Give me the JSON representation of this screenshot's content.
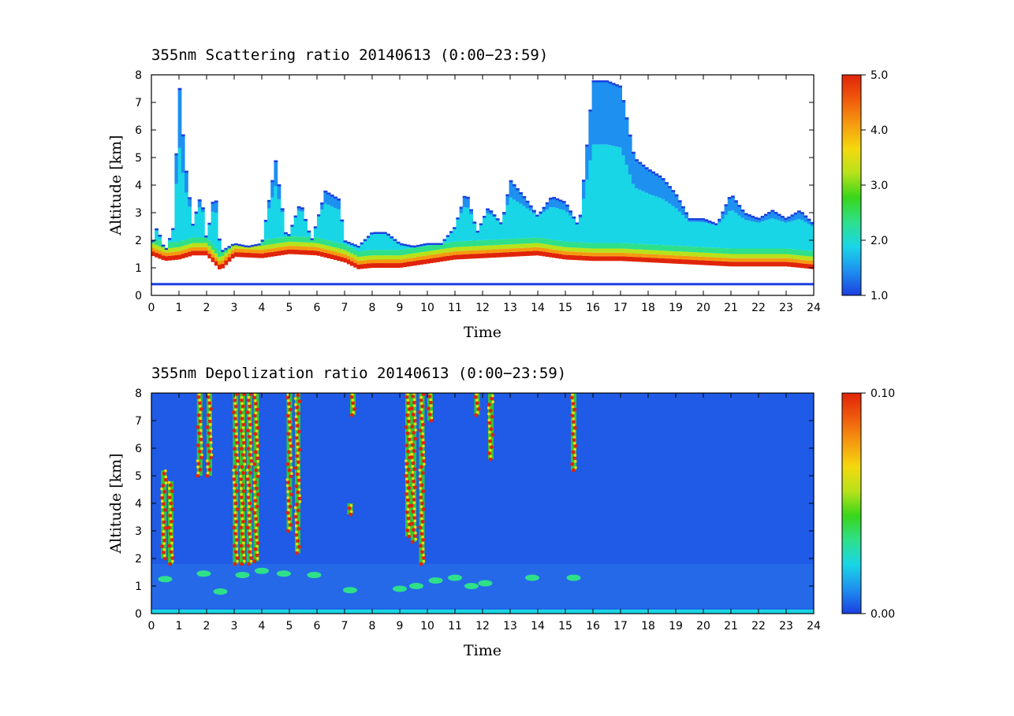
{
  "chart_data": [
    {
      "type": "heatmap",
      "title": "355nm Scattering ratio  20140613 (0:00−23:59)",
      "xlabel": "Time",
      "ylabel": "Altitude [km]",
      "xlim": [
        0,
        24
      ],
      "ylim": [
        0,
        8
      ],
      "x_ticks": [
        "0",
        "1",
        "2",
        "3",
        "4",
        "5",
        "6",
        "7",
        "8",
        "9",
        "10",
        "11",
        "12",
        "13",
        "14",
        "15",
        "16",
        "17",
        "18",
        "19",
        "20",
        "21",
        "22",
        "23",
        "24"
      ],
      "y_ticks": [
        "0",
        "1",
        "2",
        "3",
        "4",
        "5",
        "6",
        "7",
        "8"
      ],
      "colorbar": {
        "min": 1.0,
        "max": 5.0,
        "tick_labels": [
          "1.0",
          "2.0",
          "3.0",
          "4.0",
          "5.0"
        ],
        "tick_values": [
          1.0,
          2.0,
          3.0,
          4.0,
          5.0
        ]
      },
      "colormap": [
        "#1c3fe0",
        "#1e90f0",
        "#19d6e6",
        "#2ee08a",
        "#39d61a",
        "#b8e21a",
        "#f5d80e",
        "#f59a10",
        "#f05a0c",
        "#e0240a"
      ],
      "layers": {
        "boundary_layer_top_km": [
          [
            0,
            1.5
          ],
          [
            0.5,
            1.3
          ],
          [
            1,
            1.35
          ],
          [
            1.5,
            1.5
          ],
          [
            2,
            1.5
          ],
          [
            2.5,
            0.95
          ],
          [
            3,
            1.45
          ],
          [
            4,
            1.4
          ],
          [
            5,
            1.55
          ],
          [
            6,
            1.5
          ],
          [
            7,
            1.25
          ],
          [
            7.5,
            1.0
          ],
          [
            8,
            1.05
          ],
          [
            9,
            1.05
          ],
          [
            10,
            1.2
          ],
          [
            11,
            1.35
          ],
          [
            12,
            1.4
          ],
          [
            13,
            1.45
          ],
          [
            14,
            1.5
          ],
          [
            15,
            1.35
          ],
          [
            16,
            1.3
          ],
          [
            17,
            1.3
          ],
          [
            18,
            1.25
          ],
          [
            19,
            1.2
          ],
          [
            20,
            1.15
          ],
          [
            21,
            1.1
          ],
          [
            22,
            1.1
          ],
          [
            23,
            1.1
          ],
          [
            24,
            1.0
          ]
        ],
        "aerosol_top_km": [
          [
            0,
            1.8
          ],
          [
            0.2,
            2.5
          ],
          [
            0.5,
            1.6
          ],
          [
            0.8,
            2.5
          ],
          [
            1.0,
            7.8
          ],
          [
            1.2,
            5.0
          ],
          [
            1.5,
            2.6
          ],
          [
            1.8,
            3.7
          ],
          [
            2.0,
            2.0
          ],
          [
            2.3,
            3.9
          ],
          [
            2.5,
            1.6
          ],
          [
            3.0,
            1.9
          ],
          [
            3.5,
            1.8
          ],
          [
            4.0,
            1.9
          ],
          [
            4.5,
            4.9
          ],
          [
            4.9,
            2.0
          ],
          [
            5.4,
            3.4
          ],
          [
            5.8,
            2.0
          ],
          [
            6.3,
            3.8
          ],
          [
            6.8,
            3.5
          ],
          [
            7.0,
            2.0
          ],
          [
            7.5,
            1.8
          ],
          [
            8,
            2.3
          ],
          [
            8.5,
            2.3
          ],
          [
            9,
            1.9
          ],
          [
            9.5,
            1.8
          ],
          [
            10,
            1.9
          ],
          [
            10.5,
            1.9
          ],
          [
            11,
            2.5
          ],
          [
            11.4,
            3.8
          ],
          [
            11.8,
            2.3
          ],
          [
            12.2,
            3.2
          ],
          [
            12.7,
            2.6
          ],
          [
            13.0,
            4.2
          ],
          [
            13.5,
            3.6
          ],
          [
            14,
            2.9
          ],
          [
            14.5,
            3.6
          ],
          [
            15,
            3.4
          ],
          [
            15.5,
            2.5
          ],
          [
            16,
            7.8
          ],
          [
            16.5,
            7.8
          ],
          [
            17,
            7.6
          ],
          [
            17.5,
            5.0
          ],
          [
            18,
            4.6
          ],
          [
            18.5,
            4.3
          ],
          [
            19,
            3.7
          ],
          [
            19.5,
            2.8
          ],
          [
            20,
            2.8
          ],
          [
            20.5,
            2.6
          ],
          [
            21,
            3.7
          ],
          [
            21.5,
            3.0
          ],
          [
            22,
            2.8
          ],
          [
            22.5,
            3.1
          ],
          [
            23,
            2.8
          ],
          [
            23.5,
            3.1
          ],
          [
            24,
            2.6
          ]
        ]
      }
    },
    {
      "type": "heatmap",
      "title": "355nm Depolization ratio  20140613 (0:00−23:59)",
      "xlabel": "Time",
      "ylabel": "Altitude [km]",
      "xlim": [
        0,
        24
      ],
      "ylim": [
        0,
        8
      ],
      "x_ticks": [
        "0",
        "1",
        "2",
        "3",
        "4",
        "5",
        "6",
        "7",
        "8",
        "9",
        "10",
        "11",
        "12",
        "13",
        "14",
        "15",
        "16",
        "17",
        "18",
        "19",
        "20",
        "21",
        "22",
        "23",
        "24"
      ],
      "y_ticks": [
        "0",
        "1",
        "2",
        "3",
        "4",
        "5",
        "6",
        "7",
        "8"
      ],
      "colorbar": {
        "min": 0.0,
        "max": 0.1,
        "tick_labels": [
          "0.00",
          "0.10"
        ],
        "tick_values": [
          0.0,
          0.1
        ]
      },
      "colormap": [
        "#1c3fe0",
        "#1e90f0",
        "#19d6e6",
        "#2ee08a",
        "#39d61a",
        "#b8e21a",
        "#f5d80e",
        "#f59a10",
        "#f05a0c",
        "#e0240a"
      ],
      "background_value": 0.01,
      "high_depol_columns": [
        {
          "x": 0.45,
          "y0": 2.0,
          "y1": 5.2
        },
        {
          "x": 0.7,
          "y0": 1.8,
          "y1": 4.8
        },
        {
          "x": 1.75,
          "y0": 5.0,
          "y1": 8.0
        },
        {
          "x": 2.1,
          "y0": 5.0,
          "y1": 8.0
        },
        {
          "x": 3.05,
          "y0": 1.8,
          "y1": 8.0
        },
        {
          "x": 3.3,
          "y0": 1.8,
          "y1": 8.0
        },
        {
          "x": 3.55,
          "y0": 1.8,
          "y1": 8.0
        },
        {
          "x": 3.8,
          "y0": 1.9,
          "y1": 8.0
        },
        {
          "x": 5.0,
          "y0": 3.0,
          "y1": 8.0
        },
        {
          "x": 5.3,
          "y0": 2.2,
          "y1": 8.0
        },
        {
          "x": 7.3,
          "y0": 7.2,
          "y1": 8.0
        },
        {
          "x": 7.2,
          "y0": 3.6,
          "y1": 4.0
        },
        {
          "x": 9.3,
          "y0": 2.8,
          "y1": 8.0
        },
        {
          "x": 9.5,
          "y0": 2.6,
          "y1": 8.0
        },
        {
          "x": 9.8,
          "y0": 1.8,
          "y1": 8.0
        },
        {
          "x": 10.1,
          "y0": 7.0,
          "y1": 8.0
        },
        {
          "x": 11.8,
          "y0": 7.2,
          "y1": 8.0
        },
        {
          "x": 12.3,
          "y0": 5.6,
          "y1": 8.0
        },
        {
          "x": 15.3,
          "y0": 5.2,
          "y1": 8.0
        }
      ],
      "low_depol_patches": [
        {
          "x": 0.5,
          "y": 1.25
        },
        {
          "x": 1.9,
          "y": 1.45
        },
        {
          "x": 2.5,
          "y": 0.8
        },
        {
          "x": 3.3,
          "y": 1.4
        },
        {
          "x": 4.0,
          "y": 1.55
        },
        {
          "x": 4.8,
          "y": 1.45
        },
        {
          "x": 5.9,
          "y": 1.4
        },
        {
          "x": 7.2,
          "y": 0.85
        },
        {
          "x": 9.0,
          "y": 0.9
        },
        {
          "x": 9.6,
          "y": 1.0
        },
        {
          "x": 10.3,
          "y": 1.2
        },
        {
          "x": 11.0,
          "y": 1.3
        },
        {
          "x": 11.6,
          "y": 1.0
        },
        {
          "x": 12.1,
          "y": 1.1
        },
        {
          "x": 13.8,
          "y": 1.3
        },
        {
          "x": 15.3,
          "y": 1.3
        }
      ]
    }
  ]
}
